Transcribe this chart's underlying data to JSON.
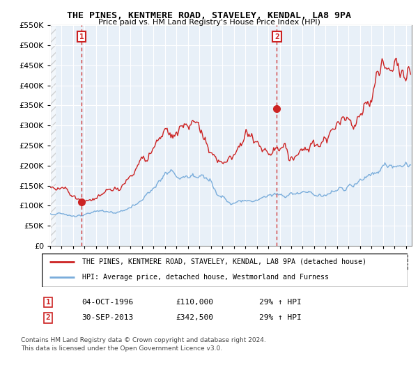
{
  "title1": "THE PINES, KENTMERE ROAD, STAVELEY, KENDAL, LA8 9PA",
  "title2": "Price paid vs. HM Land Registry's House Price Index (HPI)",
  "legend_line1": "THE PINES, KENTMERE ROAD, STAVELEY, KENDAL, LA8 9PA (detached house)",
  "legend_line2": "HPI: Average price, detached house, Westmorland and Furness",
  "annotation1_date": "04-OCT-1996",
  "annotation1_price": "£110,000",
  "annotation1_hpi": "29% ↑ HPI",
  "annotation2_date": "30-SEP-2013",
  "annotation2_price": "£342,500",
  "annotation2_hpi": "29% ↑ HPI",
  "footer1": "Contains HM Land Registry data © Crown copyright and database right 2024.",
  "footer2": "This data is licensed under the Open Government Licence v3.0.",
  "hpi_color": "#7aaddb",
  "price_color": "#cc2222",
  "annotation_color": "#cc2222",
  "plot_bg": "#e8f0f8",
  "ylim": [
    0,
    550000
  ],
  "yticks": [
    0,
    50000,
    100000,
    150000,
    200000,
    250000,
    300000,
    350000,
    400000,
    450000,
    500000,
    550000
  ],
  "sale1_x": 1996.75,
  "sale1_y": 110000,
  "sale2_x": 2013.75,
  "sale2_y": 342500,
  "xmin": 1994,
  "xmax": 2025.5,
  "hatch_xmax": 1994.5
}
